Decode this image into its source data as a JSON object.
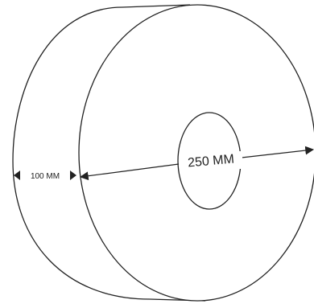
{
  "diagram": {
    "width_label": "100 MM",
    "diameter_label": "250 MM",
    "colors": {
      "stroke": "#222222",
      "background": "#ffffff"
    }
  }
}
